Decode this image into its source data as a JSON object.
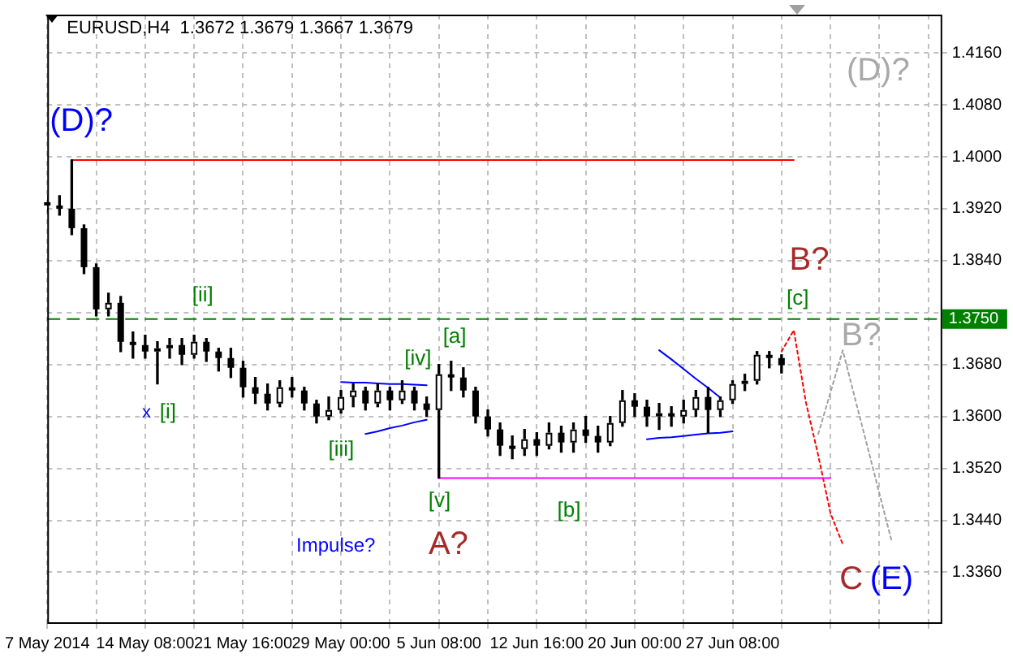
{
  "chart_data": {
    "type": "candlestick",
    "title": "EURUSD,H4  1.3672 1.3679 1.3667 1.3679",
    "categories": [
      "7 May 2014",
      null,
      null,
      null,
      null,
      null,
      null,
      null,
      "14 May 08:00",
      null,
      null,
      null,
      null,
      null,
      null,
      null,
      "21 May 16:00",
      null,
      null,
      null,
      null,
      null,
      null,
      null,
      "29 May 00:00",
      null,
      null,
      null,
      null,
      null,
      null,
      null,
      "5 Jun 08:00",
      null,
      null,
      null,
      null,
      null,
      null,
      null,
      "12 Jun 16:00",
      null,
      null,
      null,
      null,
      null,
      null,
      null,
      "20 Jun 00:00",
      null,
      null,
      null,
      null,
      null,
      null,
      null,
      "27 Jun 08:00",
      null,
      null,
      null,
      null,
      null,
      null,
      null,
      null,
      null,
      null,
      null,
      null,
      null,
      null,
      null,
      null,
      null
    ],
    "ohlc": [
      [
        1.393,
        1.394,
        1.3915,
        1.3925
      ],
      [
        1.3925,
        1.394,
        1.391,
        1.392
      ],
      [
        1.392,
        1.3995,
        1.388,
        1.389
      ],
      [
        1.389,
        1.3895,
        1.382,
        1.383
      ],
      [
        1.383,
        1.3835,
        1.3755,
        1.3765
      ],
      [
        1.3765,
        1.379,
        1.3755,
        1.3775
      ],
      [
        1.3775,
        1.3785,
        1.37,
        1.3715
      ],
      [
        1.3715,
        1.373,
        1.369,
        1.371
      ],
      [
        1.371,
        1.3725,
        1.369,
        1.37
      ],
      [
        1.37,
        1.3715,
        1.365,
        1.3705
      ],
      [
        1.3705,
        1.372,
        1.369,
        1.371
      ],
      [
        1.371,
        1.372,
        1.368,
        1.3695
      ],
      [
        1.3695,
        1.3725,
        1.369,
        1.3715
      ],
      [
        1.3715,
        1.372,
        1.3685,
        1.37
      ],
      [
        1.37,
        1.3705,
        1.367,
        1.369
      ],
      [
        1.369,
        1.3705,
        1.366,
        1.3675
      ],
      [
        1.3675,
        1.3685,
        1.363,
        1.3645
      ],
      [
        1.3645,
        1.366,
        1.362,
        1.3635
      ],
      [
        1.3635,
        1.365,
        1.361,
        1.362
      ],
      [
        1.362,
        1.3655,
        1.3615,
        1.3645
      ],
      [
        1.3645,
        1.366,
        1.363,
        1.364
      ],
      [
        1.364,
        1.3645,
        1.361,
        1.362
      ],
      [
        1.362,
        1.3625,
        1.359,
        1.36
      ],
      [
        1.36,
        1.363,
        1.3595,
        1.361
      ],
      [
        1.361,
        1.364,
        1.3605,
        1.363
      ],
      [
        1.363,
        1.365,
        1.3615,
        1.364
      ],
      [
        1.364,
        1.3645,
        1.361,
        1.362
      ],
      [
        1.362,
        1.365,
        1.3615,
        1.364
      ],
      [
        1.364,
        1.3645,
        1.361,
        1.3625
      ],
      [
        1.3625,
        1.3655,
        1.362,
        1.364
      ],
      [
        1.364,
        1.3645,
        1.361,
        1.362
      ],
      [
        1.362,
        1.363,
        1.36,
        1.361
      ],
      [
        1.361,
        1.368,
        1.3505,
        1.3665
      ],
      [
        1.3665,
        1.3685,
        1.364,
        1.366
      ],
      [
        1.366,
        1.3675,
        1.363,
        1.364
      ],
      [
        1.364,
        1.3645,
        1.359,
        1.36
      ],
      [
        1.36,
        1.361,
        1.357,
        1.358
      ],
      [
        1.358,
        1.359,
        1.354,
        1.3555
      ],
      [
        1.3555,
        1.357,
        1.3535,
        1.355
      ],
      [
        1.355,
        1.358,
        1.354,
        1.3565
      ],
      [
        1.3565,
        1.3575,
        1.354,
        1.3555
      ],
      [
        1.3555,
        1.359,
        1.355,
        1.3575
      ],
      [
        1.3575,
        1.3585,
        1.3545,
        1.356
      ],
      [
        1.356,
        1.359,
        1.3545,
        1.358
      ],
      [
        1.358,
        1.36,
        1.356,
        1.357
      ],
      [
        1.357,
        1.3585,
        1.3545,
        1.356
      ],
      [
        1.356,
        1.36,
        1.3555,
        1.359
      ],
      [
        1.359,
        1.364,
        1.3585,
        1.3625
      ],
      [
        1.3625,
        1.3635,
        1.36,
        1.3615
      ],
      [
        1.3615,
        1.3625,
        1.3585,
        1.36
      ],
      [
        1.36,
        1.362,
        1.358,
        1.3605
      ],
      [
        1.3605,
        1.3615,
        1.3585,
        1.36
      ],
      [
        1.36,
        1.3625,
        1.359,
        1.361
      ],
      [
        1.361,
        1.364,
        1.36,
        1.363
      ],
      [
        1.363,
        1.3645,
        1.3575,
        1.361
      ],
      [
        1.361,
        1.363,
        1.36,
        1.3625
      ],
      [
        1.3625,
        1.3655,
        1.362,
        1.365
      ],
      [
        1.365,
        1.3665,
        1.364,
        1.3655
      ],
      [
        1.3655,
        1.37,
        1.365,
        1.3695
      ],
      [
        1.3695,
        1.37,
        1.3675,
        1.369
      ],
      [
        1.369,
        1.3695,
        1.3667,
        1.3679
      ],
      null,
      null,
      null,
      null,
      null,
      null,
      null,
      null,
      null,
      null,
      null,
      null,
      null
    ],
    "series": [
      {
        "type": "line",
        "values": [
          null,
          null,
          1.3995,
          1.3995,
          1.3995,
          1.3995,
          1.3995,
          1.3995,
          1.3995,
          1.3995,
          1.3995,
          1.3995,
          1.3995,
          1.3995,
          1.3995,
          1.3995,
          1.3995,
          1.3995,
          1.3995,
          1.3995,
          1.3995,
          1.3995,
          1.3995,
          1.3995,
          1.3995,
          1.3995,
          1.3995,
          1.3995,
          1.3995,
          1.3995,
          1.3995,
          1.3995,
          1.3995,
          1.3995,
          1.3995,
          1.3995,
          1.3995,
          1.3995,
          1.3995,
          1.3995,
          1.3995,
          1.3995,
          1.3995,
          1.3995,
          1.3995,
          1.3995,
          1.3995,
          1.3995,
          1.3995,
          1.3995,
          1.3995,
          1.3995,
          1.3995,
          1.3995,
          1.3995,
          1.3995,
          1.3995,
          1.3995,
          1.3995,
          1.3995,
          1.3995,
          1.3995,
          null,
          null,
          null,
          null,
          null,
          null,
          null,
          null,
          null,
          null,
          null,
          null
        ],
        "color": "#ff0000",
        "line_style": "solid"
      },
      {
        "type": "line",
        "values": [
          null,
          null,
          null,
          null,
          null,
          null,
          null,
          null,
          null,
          null,
          null,
          null,
          null,
          null,
          null,
          null,
          null,
          null,
          null,
          null,
          null,
          null,
          null,
          null,
          null,
          null,
          null,
          null,
          null,
          null,
          null,
          null,
          1.3505,
          1.3505,
          1.3505,
          1.3505,
          1.3505,
          1.3505,
          1.3505,
          1.3505,
          1.3505,
          1.3505,
          1.3505,
          1.3505,
          1.3505,
          1.3505,
          1.3505,
          1.3505,
          1.3505,
          1.3505,
          1.3505,
          1.3505,
          1.3505,
          1.3505,
          1.3505,
          1.3505,
          1.3505,
          1.3505,
          1.3505,
          1.3505,
          1.3505,
          1.3505,
          1.3505,
          1.3505,
          1.3505,
          null,
          null,
          null,
          null,
          null,
          null,
          null,
          null,
          null
        ],
        "color": "#ff00ff",
        "line_style": "solid"
      },
      {
        "type": "line",
        "values": [
          null,
          null,
          null,
          null,
          null,
          null,
          null,
          null,
          null,
          null,
          null,
          null,
          null,
          null,
          null,
          null,
          null,
          null,
          null,
          null,
          null,
          null,
          null,
          null,
          1.3653,
          1.3652,
          1.3652,
          1.3651,
          1.365,
          1.365,
          1.3649,
          1.3648,
          null,
          null,
          null,
          null,
          null,
          null,
          null,
          null,
          null,
          null,
          null,
          null,
          null,
          null,
          null,
          null,
          null,
          null,
          null,
          null,
          null,
          null,
          null,
          null,
          null,
          null,
          null,
          null,
          null,
          null,
          null,
          null,
          null,
          null,
          null,
          null,
          null,
          null,
          null,
          null,
          null,
          null
        ],
        "color": "#0000ff",
        "line_style": "solid"
      },
      {
        "type": "line",
        "values": [
          null,
          null,
          null,
          null,
          null,
          null,
          null,
          null,
          null,
          null,
          null,
          null,
          null,
          null,
          null,
          null,
          null,
          null,
          null,
          null,
          null,
          null,
          null,
          null,
          null,
          null,
          1.3573,
          1.3577,
          1.3582,
          1.3586,
          1.3591,
          1.3595,
          null,
          null,
          null,
          null,
          null,
          null,
          null,
          null,
          null,
          null,
          null,
          null,
          null,
          null,
          null,
          null,
          null,
          null,
          null,
          null,
          null,
          null,
          null,
          null,
          null,
          null,
          null,
          null,
          null,
          null,
          null,
          null,
          null,
          null,
          null,
          null,
          null,
          null,
          null,
          null,
          null,
          null
        ],
        "color": "#0000ff",
        "line_style": "solid"
      },
      {
        "type": "line",
        "values": [
          null,
          null,
          null,
          null,
          null,
          null,
          null,
          null,
          null,
          null,
          null,
          null,
          null,
          null,
          null,
          null,
          null,
          null,
          null,
          null,
          null,
          null,
          null,
          null,
          null,
          null,
          null,
          null,
          null,
          null,
          null,
          null,
          null,
          null,
          null,
          null,
          null,
          null,
          null,
          null,
          null,
          null,
          null,
          null,
          null,
          null,
          null,
          null,
          null,
          null,
          1.3702,
          1.3688,
          1.3673,
          1.3658,
          1.3644,
          1.3629,
          null,
          null,
          null,
          null,
          null,
          null,
          null,
          null,
          null,
          null,
          null,
          null,
          null,
          null,
          null,
          null,
          null,
          null
        ],
        "color": "#0000ff",
        "line_style": "solid"
      },
      {
        "type": "line",
        "values": [
          null,
          null,
          null,
          null,
          null,
          null,
          null,
          null,
          null,
          null,
          null,
          null,
          null,
          null,
          null,
          null,
          null,
          null,
          null,
          null,
          null,
          null,
          null,
          null,
          null,
          null,
          null,
          null,
          null,
          null,
          null,
          null,
          null,
          null,
          null,
          null,
          null,
          null,
          null,
          null,
          null,
          null,
          null,
          null,
          null,
          null,
          null,
          null,
          null,
          1.3565,
          1.3567,
          1.3568,
          1.357,
          1.3572,
          1.3574,
          1.3575,
          1.3577,
          null,
          null,
          null,
          null,
          null,
          null,
          null,
          null,
          null,
          null,
          null,
          null,
          null,
          null,
          null,
          null,
          null
        ],
        "color": "#0000ff",
        "line_style": "solid"
      },
      {
        "type": "line",
        "values": [
          null,
          null,
          null,
          null,
          null,
          null,
          null,
          null,
          null,
          null,
          null,
          null,
          null,
          null,
          null,
          null,
          null,
          null,
          null,
          null,
          null,
          null,
          null,
          null,
          null,
          null,
          null,
          null,
          null,
          null,
          null,
          null,
          null,
          null,
          null,
          null,
          null,
          null,
          null,
          null,
          null,
          null,
          null,
          null,
          null,
          null,
          null,
          null,
          null,
          null,
          null,
          null,
          null,
          null,
          null,
          null,
          null,
          null,
          null,
          null,
          1.37,
          1.3733,
          1.3621,
          1.354,
          1.3451,
          1.3403,
          null,
          null,
          null,
          null,
          null,
          null,
          null,
          null
        ],
        "color": "#ff0000",
        "line_style": "dotted"
      },
      {
        "type": "line",
        "values": [
          null,
          null,
          null,
          null,
          null,
          null,
          null,
          null,
          null,
          null,
          null,
          null,
          null,
          null,
          null,
          null,
          null,
          null,
          null,
          null,
          null,
          null,
          null,
          null,
          null,
          null,
          null,
          null,
          null,
          null,
          null,
          null,
          null,
          null,
          null,
          null,
          null,
          null,
          null,
          null,
          null,
          null,
          null,
          null,
          null,
          null,
          null,
          null,
          null,
          null,
          null,
          null,
          null,
          null,
          null,
          null,
          null,
          null,
          null,
          null,
          null,
          null,
          null,
          1.3573,
          1.3637,
          1.3702,
          1.3628,
          1.3555,
          1.3481,
          1.3408,
          null,
          null,
          null,
          null
        ],
        "color": "#a0a0a0",
        "line_style": "dotted"
      }
    ],
    "ref_lines": [
      {
        "axis": "y",
        "value": 1.375,
        "label": "1.3750",
        "color": "#008000",
        "line_style": "dashed"
      }
    ],
    "annotations": [
      "(D)?",
      "[ii]",
      "x",
      "[i]",
      "[iii]",
      "[iv]",
      "[a]",
      "[v]",
      "A?",
      "Impulse?",
      "[b]",
      "B?",
      "[c]",
      "(D)?",
      "B?",
      "C",
      "(E)"
    ],
    "ylim": [
      1.3283,
      1.4219
    ],
    "yticks": [
      {
        "value": 1.336,
        "label": "1.3360"
      },
      {
        "value": 1.344,
        "label": "1.3440"
      },
      {
        "value": 1.352,
        "label": "1.3520"
      },
      {
        "value": 1.36,
        "label": "1.3600"
      },
      {
        "value": 1.368,
        "label": "1.3680"
      },
      {
        "value": 1.376,
        "label": null
      },
      {
        "value": 1.384,
        "label": "1.3840"
      },
      {
        "value": 1.392,
        "label": "1.3920"
      },
      {
        "value": 1.4,
        "label": "1.4000"
      },
      {
        "value": 1.408,
        "label": "1.4080"
      },
      {
        "value": 1.416,
        "label": "1.4160"
      }
    ],
    "grid": true,
    "legend": false,
    "marker": "none"
  }
}
